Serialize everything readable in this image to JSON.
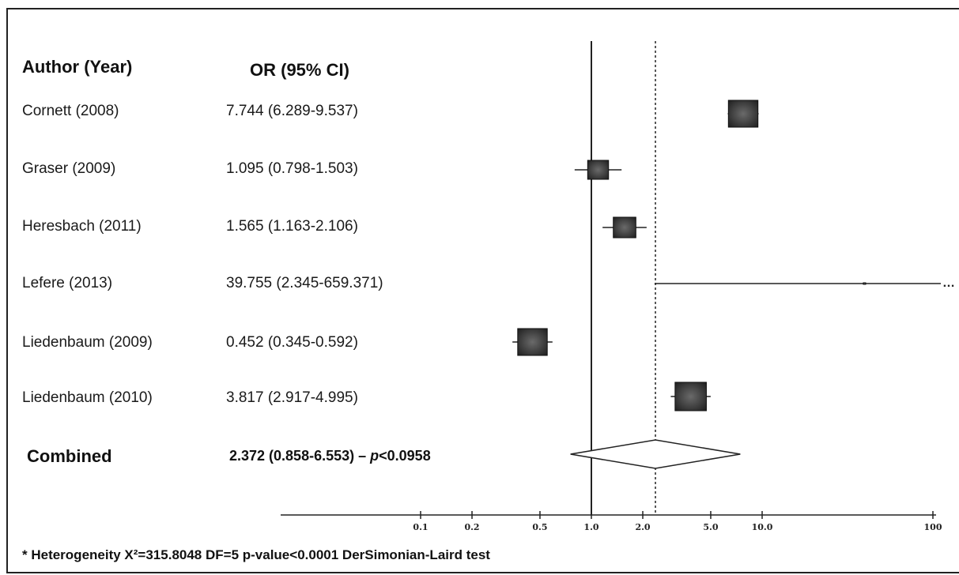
{
  "chart_data": {
    "type": "forest",
    "columns": [
      "Author (Year)",
      "OR (95% CI)"
    ],
    "studies": [
      {
        "label": "Cornett (2008)",
        "ci_text": "7.744 (6.289-9.537)",
        "or": 7.744,
        "lo": 6.289,
        "hi": 9.537,
        "weight": 0.85
      },
      {
        "label": "Graser  (2009)",
        "ci_text": "1.095 (0.798-1.503)",
        "or": 1.095,
        "lo": 0.798,
        "hi": 1.503,
        "weight": 0.6
      },
      {
        "label": "Heresbach (2011)",
        "ci_text": "1.565 (1.163-2.106)",
        "or": 1.565,
        "lo": 1.163,
        "hi": 2.106,
        "weight": 0.65
      },
      {
        "label": "Lefere (2013)",
        "ci_text": "39.755 (2.345-659.371)",
        "or": 39.755,
        "lo": 2.345,
        "hi": 659.371,
        "weight": 0.02
      },
      {
        "label": "Liedenbaum (2009)",
        "ci_text": "0.452 (0.345-0.592)",
        "or": 0.452,
        "lo": 0.345,
        "hi": 0.592,
        "weight": 0.85
      },
      {
        "label": "Liedenbaum (2010)",
        "ci_text": "3.817 (2.917-4.995)",
        "or": 3.817,
        "lo": 2.917,
        "hi": 4.995,
        "weight": 0.9
      }
    ],
    "combined": {
      "label": "Combined",
      "ci_text_prefix": "2.372 (0.858-6.553) – ",
      "p_symbol": "p",
      "ci_text_suffix": "<0.0958",
      "or": 2.372,
      "lo": 0.858,
      "hi": 6.553
    },
    "x_scale": "log",
    "xlim": [
      0.03,
      100
    ],
    "ticks": [
      {
        "value": 0.1,
        "label": "0.1"
      },
      {
        "value": 0.2,
        "label": "0.2"
      },
      {
        "value": 0.5,
        "label": "0.5"
      },
      {
        "value": 1.0,
        "label": "1.0"
      },
      {
        "value": 2.0,
        "label": "2.0"
      },
      {
        "value": 5.0,
        "label": "5.0"
      },
      {
        "value": 10.0,
        "label": "10.0"
      },
      {
        "value": 100,
        "label": "100"
      }
    ],
    "reference_line": 1.0,
    "pooled_line": 2.372,
    "footnote": "* Heterogeneity X²=315.8048  DF=5  p-value<0.0001 DerSimonian-Laird test",
    "colors": {
      "marker": "#3a3a3a",
      "line": "#222222",
      "diamond_fill": "#ffffff"
    }
  }
}
